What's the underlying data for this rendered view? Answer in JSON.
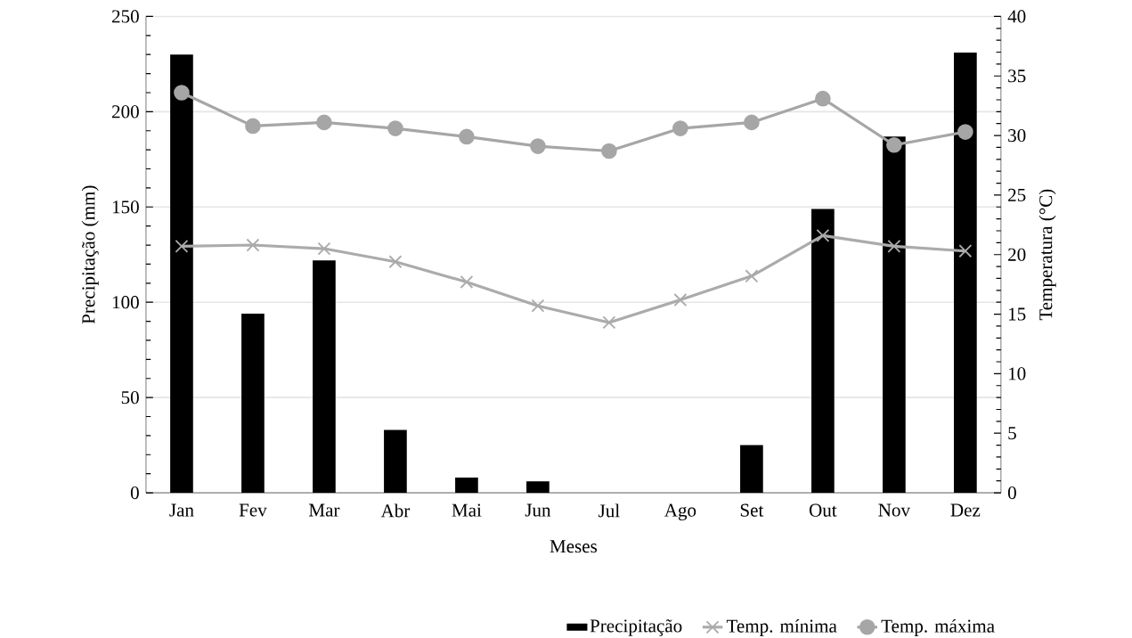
{
  "chart_data": {
    "type": "bar",
    "xlabel": "Meses",
    "ylabel": "Precipitação (mm)",
    "y2label": "Temperatura (°C)",
    "categories": [
      "Jan",
      "Fev",
      "Mar",
      "Abr",
      "Mai",
      "Jun",
      "Jul",
      "Ago",
      "Set",
      "Out",
      "Nov",
      "Dez"
    ],
    "series": [
      {
        "name": "Precipitação",
        "color": "#000000",
        "values": [
          230,
          94,
          122,
          33,
          8,
          6,
          0,
          0,
          25,
          149,
          187,
          231
        ]
      },
      {
        "name": "Temp. mínima",
        "type": "line",
        "axis": "y2",
        "color": "#ababab",
        "marker": "cross",
        "values": [
          20.7,
          20.8,
          20.5,
          19.4,
          17.7,
          15.7,
          14.3,
          16.2,
          18.2,
          21.6,
          20.7,
          20.3
        ]
      },
      {
        "name": "Temp. máxima",
        "type": "line",
        "axis": "y2",
        "color": "#a6a6a6",
        "marker": "circle",
        "values": [
          33.6,
          30.8,
          31.1,
          30.6,
          29.9,
          29.1,
          28.7,
          30.6,
          31.1,
          33.1,
          29.2,
          30.3
        ]
      }
    ],
    "ylim": [
      0,
      250
    ],
    "yticks": [
      0,
      50,
      100,
      150,
      200,
      250
    ],
    "y2lim": [
      0,
      40
    ],
    "y2ticks": [
      0,
      5,
      10,
      15,
      20,
      25,
      30,
      35,
      40
    ],
    "grid": "y",
    "legend": "bottom right"
  }
}
